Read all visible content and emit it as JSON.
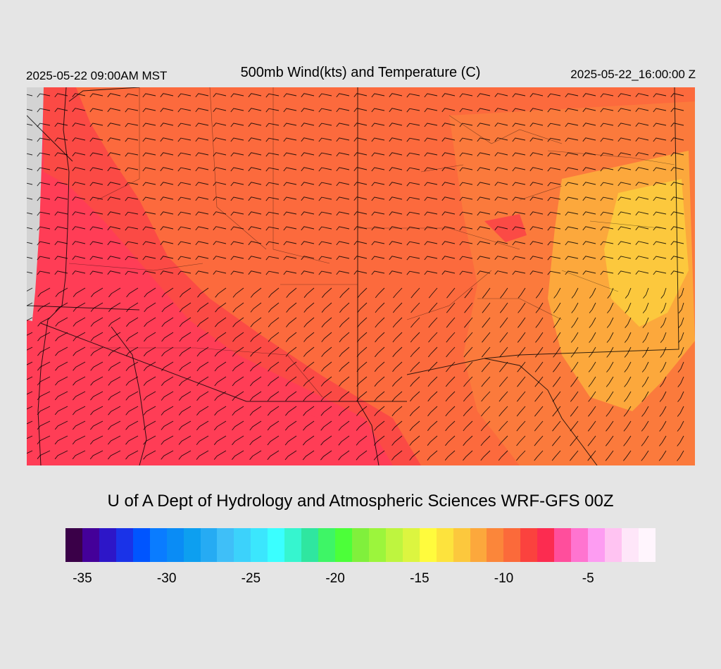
{
  "header": {
    "local_time": "2025-05-22 09:00AM MST",
    "title": "500mb Wind(kts) and Temperature (C)",
    "valid_time": "2025-05-22_16:00:00 Z"
  },
  "credit": "U of A Dept of Hydrology and Atmospheric Sciences WRF-GFS 00Z",
  "colorbar": {
    "labels": [
      "-35",
      "-30",
      "-25",
      "-20",
      "-15",
      "-10",
      "-5"
    ],
    "colors": [
      "#3a0048",
      "#440099",
      "#2d16c8",
      "#1a33e8",
      "#0055ff",
      "#0a7cff",
      "#0a8cf5",
      "#0d9ff0",
      "#26abf3",
      "#3fbff8",
      "#3cd2fb",
      "#3be6fd",
      "#3affff",
      "#36f5cf",
      "#2fe6a0",
      "#3ef566",
      "#4cff39",
      "#80f03c",
      "#9cf53c",
      "#bef53f",
      "#dcf540",
      "#fffb3d",
      "#fde33d",
      "#fcc83d",
      "#fca83c",
      "#fb863a",
      "#fb6a3a",
      "#fb423e",
      "#fc2c50",
      "#ff4e9c",
      "#ff74d0",
      "#fd9cf2",
      "#ffc3f2",
      "#fee6f9",
      "#fff5fd"
    ]
  },
  "map": {
    "colors": {
      "sea": "#d3d3d3",
      "background": "#ff3d56",
      "warm_orange": "#fc6a3d",
      "warmer_orange": "#fb7a3c",
      "orange_red": "#fb4a45",
      "yellow": "#fcc83d",
      "amber": "#fca83c"
    },
    "icons": [
      "wind-barb-icon"
    ]
  }
}
